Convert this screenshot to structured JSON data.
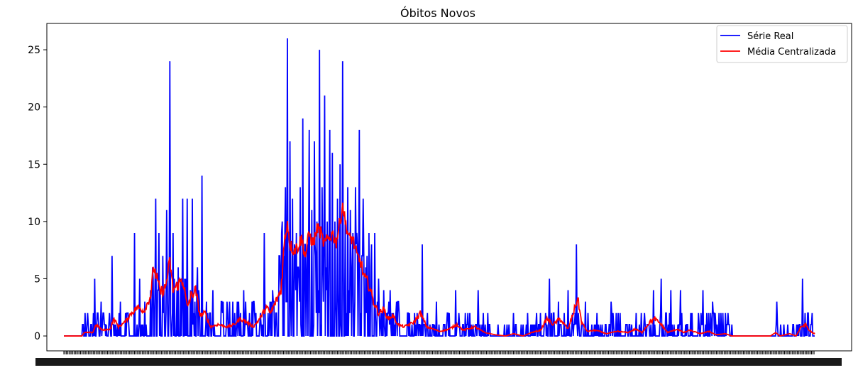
{
  "chart_data": {
    "type": "line",
    "title": "Óbitos Novos",
    "xlabel": "",
    "ylabel": "",
    "n_points": 1170,
    "ylim": [
      -1.3,
      27.3
    ],
    "y_ticks": [
      0,
      5,
      10,
      15,
      20,
      25
    ],
    "grid": false,
    "legend_position": "top-right",
    "colors": {
      "real": "#0000ff",
      "media": "#ff0000"
    },
    "spikes": [
      [
        30,
        1
      ],
      [
        36,
        1
      ],
      [
        42,
        1
      ],
      [
        48,
        5
      ],
      [
        58,
        3
      ],
      [
        66,
        1
      ],
      [
        75,
        7
      ],
      [
        88,
        3
      ],
      [
        110,
        9
      ],
      [
        118,
        5
      ],
      [
        126,
        3
      ],
      [
        138,
        6
      ],
      [
        143,
        12
      ],
      [
        148,
        9
      ],
      [
        154,
        7
      ],
      [
        160,
        11
      ],
      [
        165,
        24
      ],
      [
        170,
        9
      ],
      [
        178,
        6
      ],
      [
        185,
        12
      ],
      [
        192,
        12
      ],
      [
        200,
        12
      ],
      [
        208,
        6
      ],
      [
        215,
        14
      ],
      [
        222,
        3
      ],
      [
        232,
        4
      ],
      [
        245,
        3
      ],
      [
        258,
        3
      ],
      [
        270,
        3
      ],
      [
        280,
        4
      ],
      [
        296,
        3
      ],
      [
        312,
        9
      ],
      [
        325,
        4
      ],
      [
        335,
        7
      ],
      [
        340,
        10
      ],
      [
        345,
        13
      ],
      [
        348,
        26
      ],
      [
        352,
        17
      ],
      [
        356,
        12
      ],
      [
        362,
        9
      ],
      [
        368,
        13
      ],
      [
        372,
        19
      ],
      [
        376,
        8
      ],
      [
        382,
        18
      ],
      [
        386,
        11
      ],
      [
        390,
        17
      ],
      [
        394,
        10
      ],
      [
        398,
        25
      ],
      [
        402,
        13
      ],
      [
        406,
        21
      ],
      [
        410,
        10
      ],
      [
        414,
        18
      ],
      [
        418,
        16
      ],
      [
        422,
        10
      ],
      [
        426,
        12
      ],
      [
        430,
        15
      ],
      [
        434,
        24
      ],
      [
        438,
        10
      ],
      [
        442,
        13
      ],
      [
        446,
        11
      ],
      [
        450,
        9
      ],
      [
        454,
        13
      ],
      [
        460,
        18
      ],
      [
        466,
        12
      ],
      [
        472,
        7
      ],
      [
        478,
        6
      ],
      [
        484,
        9
      ],
      [
        490,
        5
      ],
      [
        498,
        4
      ],
      [
        508,
        4
      ],
      [
        520,
        3
      ],
      [
        535,
        2
      ],
      [
        546,
        2
      ],
      [
        558,
        8
      ],
      [
        580,
        3
      ],
      [
        600,
        2
      ],
      [
        610,
        4
      ],
      [
        625,
        2
      ],
      [
        645,
        4
      ],
      [
        660,
        2
      ],
      [
        690,
        1
      ],
      [
        700,
        2
      ],
      [
        720,
        1
      ],
      [
        742,
        2
      ],
      [
        756,
        5
      ],
      [
        770,
        3
      ],
      [
        785,
        4
      ],
      [
        798,
        8
      ],
      [
        812,
        3
      ],
      [
        830,
        2
      ],
      [
        852,
        3
      ],
      [
        875,
        1
      ],
      [
        905,
        1
      ],
      [
        918,
        4
      ],
      [
        930,
        5
      ],
      [
        945,
        4
      ],
      [
        960,
        4
      ],
      [
        978,
        2
      ],
      [
        995,
        4
      ],
      [
        1010,
        3
      ],
      [
        1030,
        2
      ],
      [
        1040,
        1
      ],
      [
        1110,
        3
      ],
      [
        1135,
        1
      ],
      [
        1150,
        5
      ],
      [
        1158,
        2
      ],
      [
        1165,
        2
      ],
      [
        1174,
        3
      ],
      [
        1178,
        1
      ]
    ],
    "series": [
      {
        "name": "Série Real",
        "color": "#0000ff",
        "description": "daily values 0-26, spikes as listed"
      },
      {
        "name": "Média Centralizada",
        "color": "#ff0000",
        "anchors": [
          [
            0,
            0
          ],
          [
            28,
            0
          ],
          [
            32,
            0.3
          ],
          [
            45,
            0.3
          ],
          [
            50,
            1
          ],
          [
            60,
            0.5
          ],
          [
            72,
            0.6
          ],
          [
            78,
            1.5
          ],
          [
            85,
            0.8
          ],
          [
            95,
            1.2
          ],
          [
            105,
            2
          ],
          [
            115,
            2.5
          ],
          [
            125,
            2.2
          ],
          [
            135,
            3.5
          ],
          [
            140,
            6
          ],
          [
            145,
            5
          ],
          [
            150,
            3.8
          ],
          [
            158,
            4.2
          ],
          [
            165,
            6.5
          ],
          [
            170,
            4
          ],
          [
            178,
            4.5
          ],
          [
            185,
            5
          ],
          [
            192,
            2.5
          ],
          [
            198,
            3.5
          ],
          [
            205,
            4
          ],
          [
            212,
            1.8
          ],
          [
            220,
            2
          ],
          [
            228,
            0.8
          ],
          [
            240,
            1
          ],
          [
            255,
            0.8
          ],
          [
            265,
            1
          ],
          [
            275,
            1.5
          ],
          [
            285,
            1.2
          ],
          [
            295,
            0.8
          ],
          [
            305,
            1.5
          ],
          [
            315,
            2.5
          ],
          [
            322,
            2
          ],
          [
            330,
            3
          ],
          [
            338,
            4
          ],
          [
            343,
            8
          ],
          [
            348,
            10
          ],
          [
            352,
            8
          ],
          [
            358,
            7.5
          ],
          [
            364,
            7.8
          ],
          [
            370,
            8.5
          ],
          [
            376,
            7
          ],
          [
            382,
            9
          ],
          [
            388,
            8
          ],
          [
            395,
            9.5
          ],
          [
            400,
            9
          ],
          [
            405,
            8
          ],
          [
            412,
            8.5
          ],
          [
            418,
            9
          ],
          [
            424,
            8.2
          ],
          [
            430,
            10
          ],
          [
            434,
            11.5
          ],
          [
            438,
            10
          ],
          [
            444,
            8.5
          ],
          [
            450,
            8.5
          ],
          [
            456,
            7
          ],
          [
            462,
            6.5
          ],
          [
            468,
            5
          ],
          [
            475,
            4.5
          ],
          [
            482,
            3
          ],
          [
            490,
            2
          ],
          [
            498,
            2.3
          ],
          [
            505,
            1.5
          ],
          [
            512,
            1.8
          ],
          [
            520,
            1
          ],
          [
            530,
            0.8
          ],
          [
            545,
            1.2
          ],
          [
            555,
            2
          ],
          [
            565,
            0.8
          ],
          [
            585,
            0.4
          ],
          [
            600,
            0.6
          ],
          [
            612,
            1
          ],
          [
            622,
            0.5
          ],
          [
            640,
            0.8
          ],
          [
            655,
            0.3
          ],
          [
            672,
            0.1
          ],
          [
            688,
            0
          ],
          [
            700,
            0.2
          ],
          [
            715,
            0
          ],
          [
            728,
            0.3
          ],
          [
            742,
            0.5
          ],
          [
            752,
            1.5
          ],
          [
            762,
            1
          ],
          [
            772,
            1.5
          ],
          [
            785,
            0.6
          ],
          [
            792,
            1.8
          ],
          [
            800,
            3.3
          ],
          [
            806,
            1.2
          ],
          [
            815,
            0.4
          ],
          [
            828,
            0.5
          ],
          [
            845,
            0.2
          ],
          [
            862,
            0.4
          ],
          [
            878,
            0.3
          ],
          [
            890,
            0.6
          ],
          [
            900,
            0.3
          ],
          [
            912,
            1.2
          ],
          [
            920,
            1.5
          ],
          [
            930,
            1
          ],
          [
            940,
            0.3
          ],
          [
            955,
            0.6
          ],
          [
            965,
            0.3
          ],
          [
            975,
            0.5
          ],
          [
            990,
            0.2
          ],
          [
            1005,
            0.4
          ],
          [
            1015,
            0.1
          ],
          [
            1030,
            0.2
          ],
          [
            1040,
            0
          ],
          [
            1100,
            0
          ],
          [
            1108,
            0.3
          ],
          [
            1115,
            0
          ],
          [
            1130,
            0.2
          ],
          [
            1140,
            0
          ],
          [
            1148,
            0.8
          ],
          [
            1155,
            1
          ],
          [
            1160,
            0.5
          ],
          [
            1168,
            0.2
          ],
          [
            1174,
            0.5
          ],
          [
            1178,
            0.2
          ],
          [
            1180,
            0
          ]
        ]
      }
    ]
  }
}
